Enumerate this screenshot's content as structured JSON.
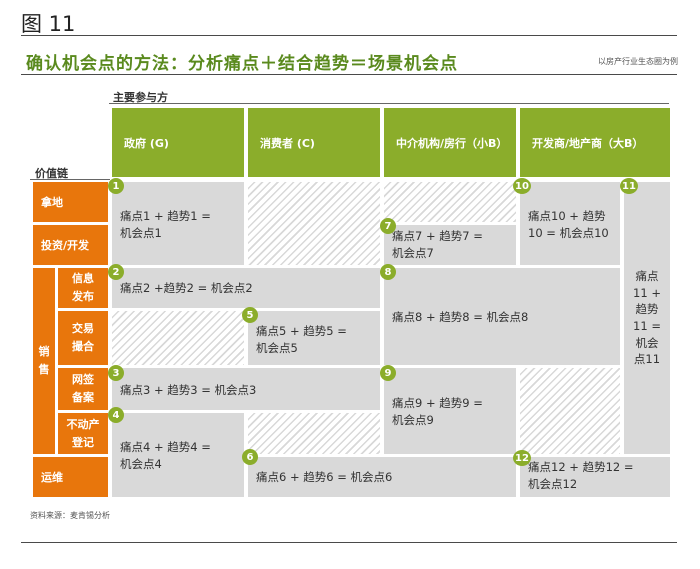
{
  "figure_label": "图 11",
  "title": "确认机会点的方法：分析痛点＋结合趋势＝场景机会点",
  "subtitle": "以房产行业生态圈为例",
  "main_participants_label": "主要参与方",
  "value_chain_label": "价值链",
  "columns": [
    "政府 (G)",
    "消费者 (C)",
    "中介机构/房行（小B）",
    "开发商/地产商（大B）"
  ],
  "rows": {
    "land": "拿地",
    "invest": "投资/开发",
    "sales_group": [
      "销",
      "售"
    ],
    "info": [
      "信息",
      "发布"
    ],
    "match": [
      "交易",
      "撮合"
    ],
    "contract": [
      "网签",
      "备案"
    ],
    "property": [
      "不动产",
      "登记"
    ],
    "ops": "运维"
  },
  "cells": {
    "c1": {
      "badge": "1",
      "lines": [
        "痛点1 + 趋势1 =",
        "机会点1"
      ]
    },
    "c2": {
      "badge": "2",
      "lines": [
        "痛点2 +趋势2 = 机会点2"
      ]
    },
    "c3": {
      "badge": "3",
      "lines": [
        "痛点3 + 趋势3 = 机会点3"
      ]
    },
    "c4": {
      "badge": "4",
      "lines": [
        "痛点4 + 趋势4 =",
        "机会点4"
      ]
    },
    "c5": {
      "badge": "5",
      "lines": [
        "痛点5 + 趋势5 =",
        "机会点5"
      ]
    },
    "c6": {
      "badge": "6",
      "lines": [
        "痛点6 + 趋势6 = 机会点6"
      ]
    },
    "c7": {
      "badge": "7",
      "lines": [
        "痛点7 + 趋势7 =",
        "机会点7"
      ]
    },
    "c8": {
      "badge": "8",
      "lines": [
        "痛点8 + 趋势8 = 机会点8"
      ]
    },
    "c9": {
      "badge": "9",
      "lines": [
        "痛点9 + 趋势9 =",
        "机会点9"
      ]
    },
    "c10": {
      "badge": "10",
      "lines": [
        "痛点10 + 趋势",
        "10 = 机会点10"
      ]
    },
    "c11": {
      "badge": "11",
      "lines": [
        "痛点",
        "11 +",
        "趋势",
        "11 =",
        "机会",
        "点11"
      ]
    },
    "c12": {
      "badge": "12",
      "lines": [
        "痛点12 + 趋势12 =",
        "机会点12"
      ]
    }
  },
  "source": "资料来源：麦肯锡分析",
  "colors": {
    "green": "#8bad2b",
    "orange": "#e8760c",
    "cell_gray": "#d9d9d9",
    "title_green": "#5a8a1e"
  }
}
